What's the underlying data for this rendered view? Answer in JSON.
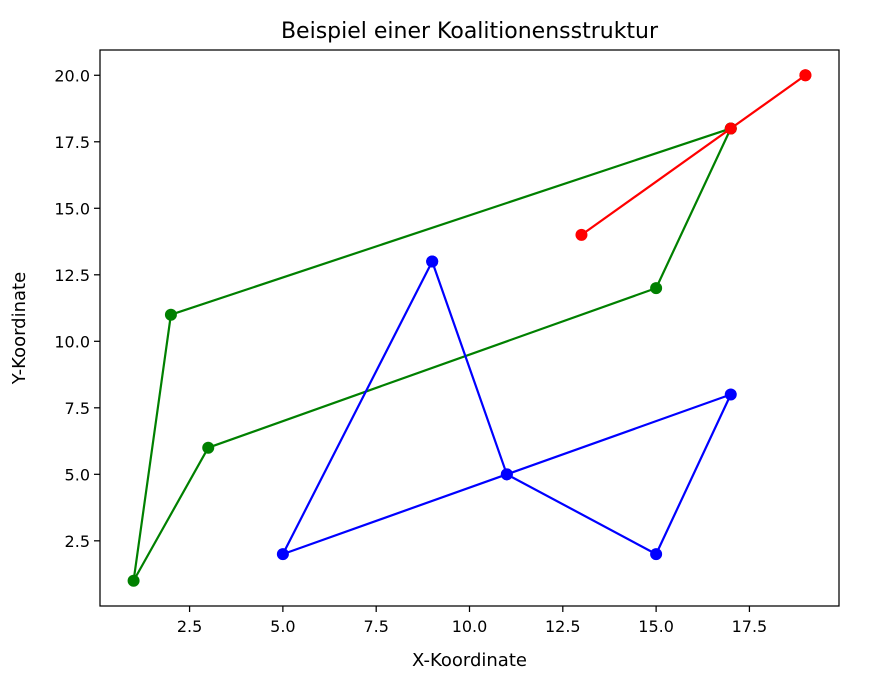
{
  "chart_data": {
    "type": "line",
    "title": "Beispiel einer Koalitionensstruktur",
    "xlabel": "X-Koordinate",
    "ylabel": "Y-Koordinate",
    "xlim": [
      0.1,
      19.9
    ],
    "ylim": [
      0.05,
      20.95
    ],
    "x_ticks": [
      2.5,
      5.0,
      7.5,
      10.0,
      12.5,
      15.0,
      17.5
    ],
    "y_ticks": [
      2.5,
      5.0,
      7.5,
      10.0,
      12.5,
      15.0,
      17.5,
      20.0
    ],
    "grid": false,
    "marker": "circle",
    "series": [
      {
        "color": "#008000",
        "points": [
          [
            17,
            18
          ],
          [
            2,
            11
          ],
          [
            1,
            1
          ],
          [
            3,
            6
          ],
          [
            15,
            12
          ],
          [
            17,
            18
          ]
        ]
      },
      {
        "color": "#0000ff",
        "points": [
          [
            9,
            13
          ],
          [
            11,
            5
          ],
          [
            15,
            2
          ],
          [
            17,
            8
          ],
          [
            11,
            5
          ],
          [
            5,
            2
          ],
          [
            9,
            13
          ]
        ]
      },
      {
        "color": "#ff0000",
        "points": [
          [
            19,
            20
          ],
          [
            13,
            14
          ],
          [
            17,
            18
          ],
          [
            19,
            20
          ]
        ]
      }
    ]
  }
}
